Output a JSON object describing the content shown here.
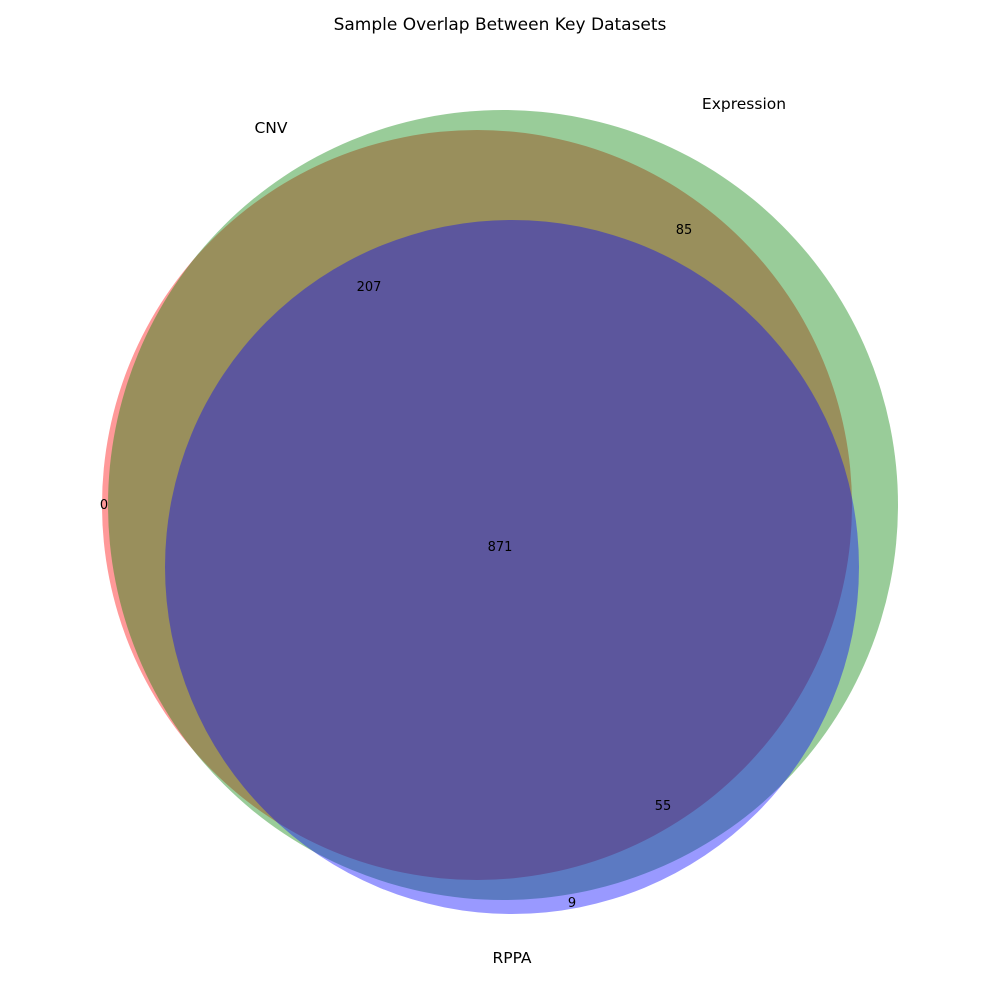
{
  "title": "Sample Overlap Between Key Datasets",
  "sets": [
    {
      "name": "CNV",
      "color": "#ff0000"
    },
    {
      "name": "Expression",
      "color": "#008000"
    },
    {
      "name": "RPPA",
      "color": "#0000ff"
    }
  ],
  "regions": {
    "cnv_only": "0",
    "expression_only": "85",
    "cnv_expression": "207",
    "all_three": "871",
    "expression_rppa": "55",
    "rppa_only": "9"
  }
}
